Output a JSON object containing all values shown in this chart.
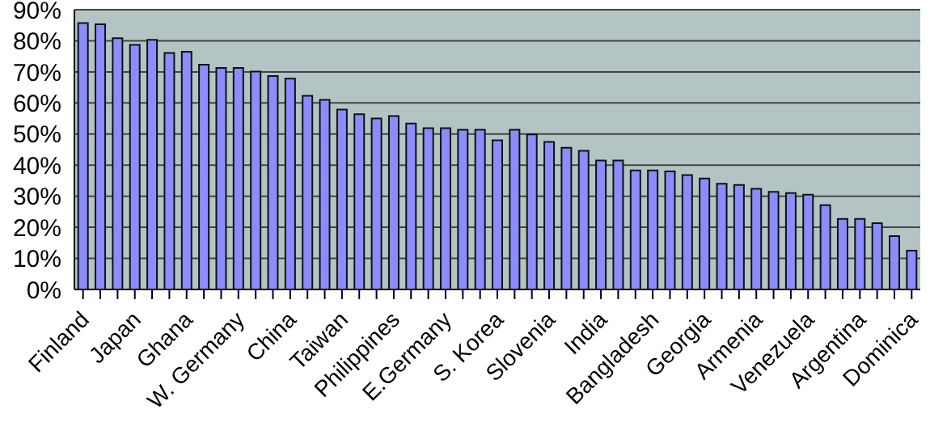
{
  "chart_data": {
    "type": "bar",
    "categories": [
      "Finland",
      null,
      null,
      "Japan",
      null,
      null,
      "Ghana",
      null,
      null,
      "W. Germany",
      null,
      null,
      "China",
      null,
      null,
      "Taiwan",
      null,
      null,
      "Philippines",
      null,
      null,
      "E.Germany",
      null,
      null,
      "S. Korea",
      null,
      null,
      "Slovenia",
      null,
      null,
      "India",
      null,
      null,
      "Bangladesh",
      null,
      null,
      "Georgia",
      null,
      null,
      "Armenia",
      null,
      null,
      "Venezuela",
      null,
      null,
      "Argentina",
      null,
      null,
      "Dominica"
    ],
    "values": [
      85.7,
      85.3,
      80.8,
      78.7,
      80.3,
      76.1,
      76.5,
      72.3,
      71.3,
      71.3,
      70.1,
      68.7,
      67.8,
      62.3,
      61.0,
      57.9,
      56.4,
      55.0,
      55.8,
      53.4,
      51.9,
      51.9,
      51.4,
      51.4,
      48.0,
      51.4,
      49.9,
      47.5,
      45.6,
      44.6,
      41.5,
      41.5,
      38.3,
      38.3,
      38.0,
      36.8,
      35.7,
      34.0,
      33.6,
      32.4,
      31.4,
      31.0,
      30.5,
      27.1,
      22.7,
      22.7,
      21.3,
      17.2,
      12.5
    ],
    "color": "#8c8cff",
    "ylim": [
      0,
      90
    ],
    "yticks": [
      {
        "value": 0,
        "label": "0%"
      },
      {
        "value": 10,
        "label": "10%"
      },
      {
        "value": 20,
        "label": "20%"
      },
      {
        "value": 30,
        "label": "30%"
      },
      {
        "value": 40,
        "label": "40%"
      },
      {
        "value": 50,
        "label": "50%"
      },
      {
        "value": 60,
        "label": "60%"
      },
      {
        "value": 70,
        "label": "70%"
      },
      {
        "value": 80,
        "label": "80%"
      },
      {
        "value": 90,
        "label": "90%"
      }
    ],
    "grid": "y"
  }
}
